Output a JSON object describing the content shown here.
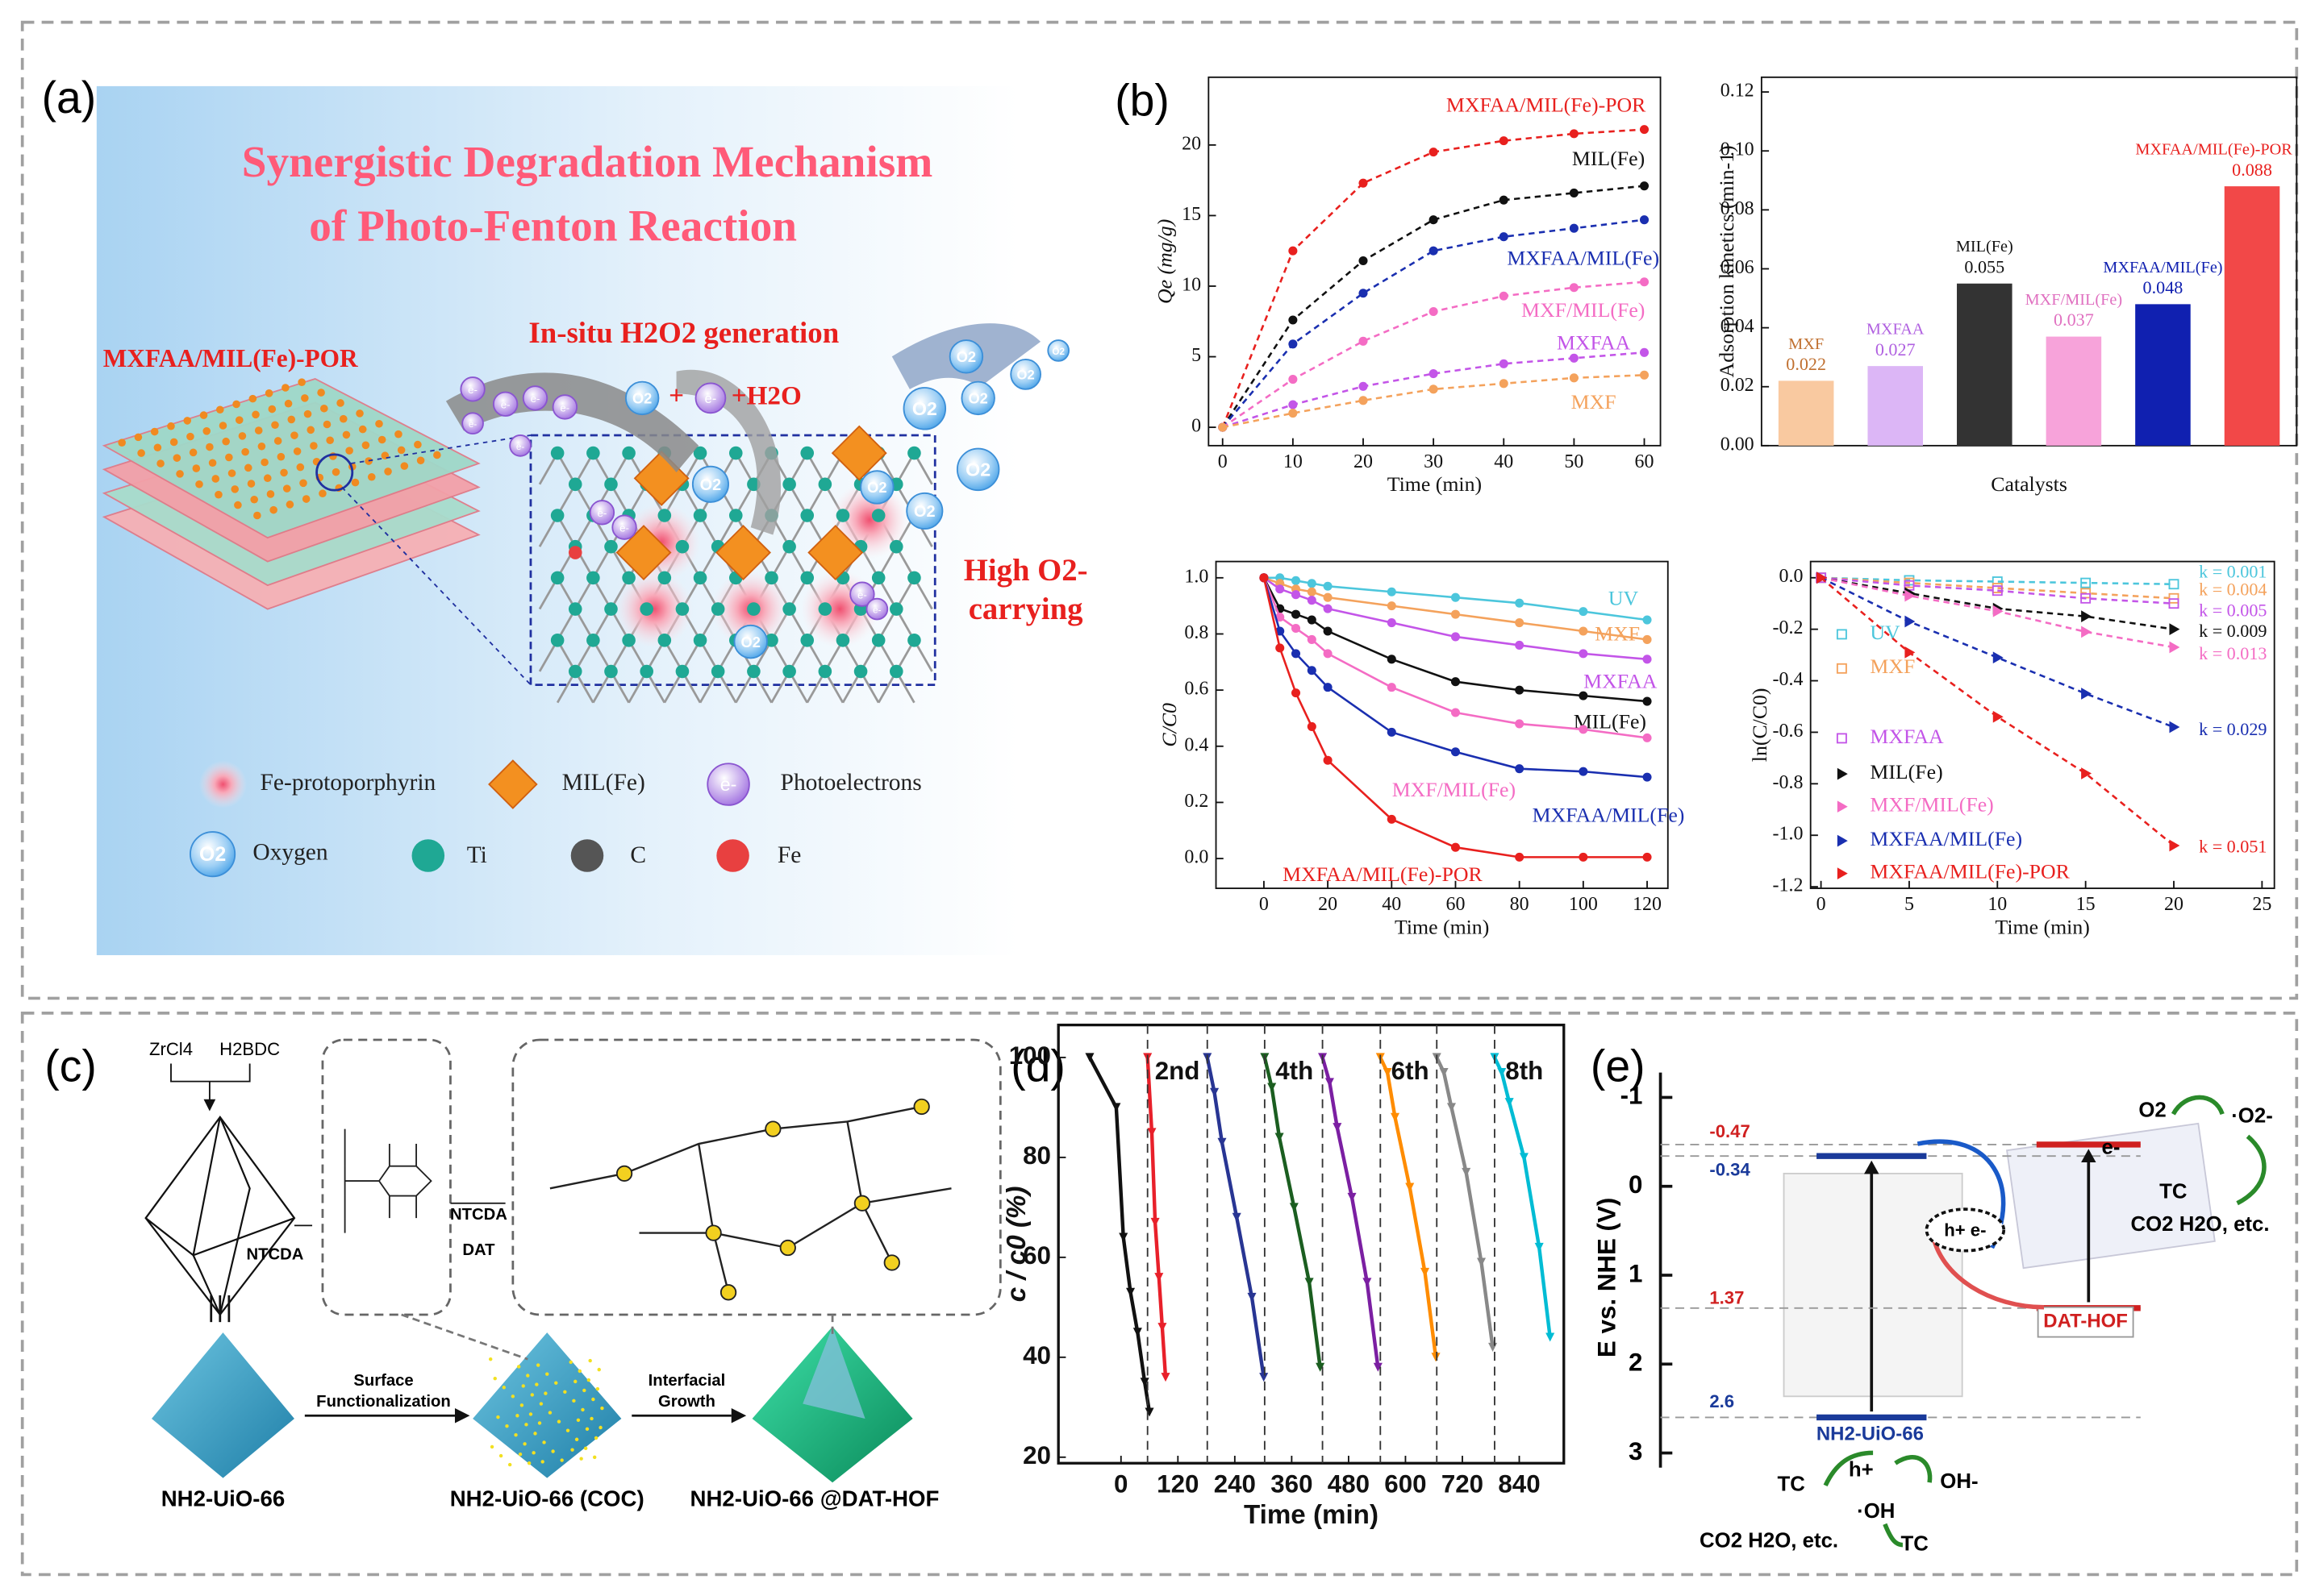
{
  "panel_a": {
    "label": "(a)",
    "title_lines": [
      "Synergistic Degradation Mechanism",
      "of Photo-Fenton Reaction"
    ],
    "material": "MXFAA/MIL(Fe)-POR",
    "generation": "In-situ H2O2 generation",
    "oxygen": "O2",
    "electron": "e-",
    "plus": "+",
    "plus_water": "+H2O",
    "carrying_lines": [
      "High O2-",
      "carrying"
    ],
    "legend": [
      "Fe-protoporphyrin",
      "MIL(Fe)",
      "Photoelectrons",
      "Oxygen",
      "Ti",
      "C",
      "Fe"
    ]
  },
  "panel_b": {
    "label": "(b)"
  },
  "chart_data": [
    {
      "type": "line",
      "line_style": "dashed",
      "x_label": "Time (min)",
      "y_label": "Qe (mg/g)",
      "x": [
        0,
        10,
        20,
        30,
        40,
        50,
        60
      ],
      "xlim": [
        -2,
        62.3
      ],
      "xticks": [
        0,
        10,
        20,
        30,
        40,
        50,
        60
      ],
      "ylim": [
        -1.3,
        24.8
      ],
      "yticks": [
        0,
        5,
        10,
        15,
        20
      ],
      "series": [
        {
          "name": "MXFAA/MIL(Fe)-POR",
          "color": "#e8201e",
          "values": [
            0,
            12.5,
            17.3,
            19.5,
            20.3,
            20.8,
            21.1
          ]
        },
        {
          "name": "MIL(Fe)",
          "color": "#111111",
          "values": [
            0,
            7.6,
            11.8,
            14.7,
            16.1,
            16.6,
            17.1
          ]
        },
        {
          "name": "MXFAA/MIL(Fe)",
          "color": "#1a2fb0",
          "values": [
            0,
            5.9,
            9.5,
            12.5,
            13.5,
            14.1,
            14.7
          ]
        },
        {
          "name": "MXF/MIL(Fe)",
          "color": "#f46cc4",
          "values": [
            0,
            3.4,
            6.1,
            8.2,
            9.3,
            9.9,
            10.3
          ]
        },
        {
          "name": "MXFAA",
          "color": "#c355e8",
          "values": [
            0,
            1.6,
            2.9,
            3.8,
            4.5,
            4.9,
            5.3
          ]
        },
        {
          "name": "MXF",
          "color": "#f4a25c",
          "values": [
            0,
            1.0,
            1.9,
            2.7,
            3.1,
            3.5,
            3.7
          ]
        }
      ]
    },
    {
      "type": "bar",
      "x_label": "Catalysts",
      "y_label": "Adsorption kinetics (min-1)",
      "categories": [
        "MXF",
        "MXFAA",
        "MIL(Fe)",
        "MXF/MIL(Fe)",
        "MXFAA/MIL(Fe)",
        "MXFAA/MIL(Fe)-POR"
      ],
      "values": [
        0.022,
        0.027,
        0.055,
        0.037,
        0.048,
        0.088
      ],
      "colors": [
        "#f9c9a0",
        "#dcb6f6",
        "#333333",
        "#f7a3da",
        "#1020b0",
        "#f24848"
      ],
      "ylim": [
        0,
        0.125
      ],
      "yticks": [
        {
          "value": 0,
          "label": "0.00"
        },
        0.02,
        0.04,
        0.06,
        0.08,
        {
          "value": 0.1,
          "label": "0.10"
        },
        0.12
      ]
    },
    {
      "type": "line",
      "line_style": "solid",
      "x_label": "Time (min)",
      "y_label": "C/C0",
      "x": [
        0,
        5,
        10,
        15,
        20,
        40,
        60,
        80,
        100,
        120
      ],
      "xlim": [
        -15,
        126.5
      ],
      "xticks": [
        0,
        20,
        40,
        60,
        80,
        100,
        120
      ],
      "ylim": [
        -0.106,
        1.058
      ],
      "yticks": [
        {
          "value": 0,
          "label": "0.0"
        },
        0.2,
        0.4,
        0.6,
        0.8,
        {
          "value": 1,
          "label": "1.0"
        }
      ],
      "series": [
        {
          "name": "UV",
          "color": "#4cc6dc",
          "values": [
            1,
            1.0,
            0.99,
            0.98,
            0.97,
            0.95,
            0.93,
            0.91,
            0.88,
            0.85
          ]
        },
        {
          "name": "MXF",
          "color": "#f4a25c",
          "values": [
            1,
            0.98,
            0.96,
            0.95,
            0.93,
            0.9,
            0.87,
            0.84,
            0.81,
            0.78
          ]
        },
        {
          "name": "MXFAA",
          "color": "#c355e8",
          "values": [
            1,
            0.96,
            0.94,
            0.92,
            0.89,
            0.84,
            0.79,
            0.76,
            0.73,
            0.71
          ]
        },
        {
          "name": "MIL(Fe)",
          "color": "#111111",
          "values": [
            1,
            0.89,
            0.87,
            0.85,
            0.81,
            0.71,
            0.63,
            0.6,
            0.58,
            0.56
          ]
        },
        {
          "name": "MXF/MIL(Fe)",
          "color": "#f46cc4",
          "values": [
            1,
            0.86,
            0.82,
            0.78,
            0.73,
            0.61,
            0.52,
            0.48,
            0.46,
            0.43
          ]
        },
        {
          "name": "MXFAA/MIL(Fe)",
          "color": "#1a2fb0",
          "values": [
            1,
            0.81,
            0.73,
            0.67,
            0.61,
            0.45,
            0.38,
            0.32,
            0.31,
            0.29
          ]
        },
        {
          "name": "MXFAA/MIL(Fe)-POR",
          "color": "#e8201e",
          "values": [
            1,
            0.75,
            0.59,
            0.47,
            0.35,
            0.14,
            0.04,
            0.005,
            0.005,
            0.005
          ]
        }
      ]
    },
    {
      "type": "line",
      "line_style": "dashed",
      "x_label": "Time (min)",
      "y_label": "ln(C/C0)",
      "x": [
        0,
        5,
        10,
        15,
        20
      ],
      "xlim": [
        -0.59,
        25.7
      ],
      "xticks": [
        0,
        5,
        10,
        15,
        20,
        25
      ],
      "ylim": [
        -1.206,
        0.063
      ],
      "yticks": [
        {
          "value": 0,
          "label": "0.0"
        },
        -0.2,
        -0.4,
        -0.6,
        -0.8,
        {
          "value": -1,
          "label": "-1.0"
        },
        -1.2
      ],
      "series": [
        {
          "name": "UV",
          "color": "#4cc6dc",
          "marker": "square-open",
          "annotation": "k = 0.001",
          "values": [
            0,
            -0.01,
            -0.015,
            -0.02,
            -0.025
          ]
        },
        {
          "name": "MXF",
          "color": "#f4a25c",
          "marker": "square-open",
          "annotation": "k = 0.004",
          "values": [
            0,
            -0.02,
            -0.04,
            -0.06,
            -0.08
          ]
        },
        {
          "name": "MXFAA",
          "color": "#c355e8",
          "marker": "square-open",
          "annotation": "k = 0.005",
          "values": [
            0,
            -0.03,
            -0.05,
            -0.08,
            -0.1
          ]
        },
        {
          "name": "MIL(Fe)",
          "color": "#111111",
          "marker": "triangle",
          "annotation": "k = 0.009",
          "values": [
            0,
            -0.06,
            -0.12,
            -0.15,
            -0.2
          ]
        },
        {
          "name": "MXF/MIL(Fe)",
          "color": "#f46cc4",
          "marker": "triangle",
          "annotation": "k = 0.013",
          "values": [
            0,
            -0.07,
            -0.13,
            -0.21,
            -0.27
          ]
        },
        {
          "name": "MXFAA/MIL(Fe)",
          "color": "#1a2fb0",
          "marker": "triangle",
          "annotation": "k = 0.029",
          "values": [
            0,
            -0.17,
            -0.31,
            -0.45,
            -0.58
          ]
        },
        {
          "name": "MXFAA/MIL(Fe)-POR",
          "color": "#e8201e",
          "marker": "triangle",
          "annotation": "k = 0.051",
          "values": [
            0,
            -0.29,
            -0.54,
            -0.76,
            -1.04
          ]
        }
      ]
    },
    {
      "type": "line",
      "line_style": "solid",
      "x_label": "Time (min)",
      "y_label": "c / c0 (%)",
      "xlim": [
        -132,
        934
      ],
      "xticks": [
        0,
        120,
        240,
        360,
        480,
        600,
        720,
        840
      ],
      "ylim": [
        18.8,
        106.5
      ],
      "yticks": [
        20,
        40,
        60,
        80,
        100
      ],
      "annotations": [
        "2nd",
        "4th",
        "6th",
        "8th"
      ],
      "series": [
        {
          "color": "#111111",
          "x": [
            -66,
            -10,
            5,
            20,
            35,
            50,
            60
          ],
          "values": [
            100,
            90,
            64,
            53,
            45,
            35,
            29
          ]
        },
        {
          "color": "#e8202a",
          "x": [
            56,
            65,
            72,
            80,
            87,
            94
          ],
          "values": [
            100,
            85,
            67,
            56,
            46,
            36
          ]
        },
        {
          "color": "#283593",
          "x": [
            182,
            197,
            213,
            244,
            276,
            301
          ],
          "values": [
            100,
            93,
            83,
            68,
            52,
            36
          ]
        },
        {
          "color": "#1b5e20",
          "x": [
            303,
            318,
            334,
            365,
            397,
            420
          ],
          "values": [
            100,
            94,
            84,
            70,
            55,
            38
          ]
        },
        {
          "color": "#7b1fa2",
          "x": [
            425,
            440,
            456,
            487,
            519,
            542
          ],
          "values": [
            100,
            95,
            86,
            72,
            55,
            38
          ]
        },
        {
          "color": "#ff8c00",
          "x": [
            547,
            562,
            578,
            609,
            641,
            664
          ],
          "values": [
            100,
            97,
            88,
            74,
            57,
            40
          ]
        },
        {
          "color": "#888888",
          "x": [
            666,
            681,
            697,
            728,
            760,
            784
          ],
          "values": [
            100,
            97,
            90,
            77,
            59,
            42
          ]
        },
        {
          "color": "#00bcd4",
          "x": [
            788,
            803,
            819,
            850,
            882,
            905
          ],
          "values": [
            100,
            97,
            91,
            80,
            62,
            44
          ]
        }
      ]
    }
  ],
  "panel_c": {
    "label": "(c)",
    "reagents": [
      "ZrCl4",
      "H2BDC"
    ],
    "step1": "NTCDA",
    "step2": [
      "NTCDA",
      "DAT"
    ],
    "arrow1": [
      "Surface",
      "Functionalization"
    ],
    "arrow2": [
      "Interfacial",
      "Growth"
    ],
    "products": [
      "NH2-UiO-66",
      "NH2-UiO-66 (COC)",
      "NH2-UiO-66 @DAT-HOF"
    ]
  },
  "panel_d": {
    "label": "(d)"
  },
  "panel_e": {
    "label": "(e)",
    "axis_label": "E vs. NHE (V)",
    "ylim": [
      -1.28,
      3.165
    ],
    "yticks": [
      -1,
      0,
      1,
      2,
      3
    ],
    "levels": [
      {
        "material": "NH2-UiO-66",
        "cb": -0.34,
        "vb": 2.6
      },
      {
        "material": "DAT-HOF",
        "cb": -0.47,
        "vb": 1.37
      }
    ],
    "pair": "h+ e-",
    "o2": "O2",
    "superoxide": "·O2-",
    "electron": "e-",
    "tc": "TC",
    "products": "CO2 H2O, etc.",
    "hole": "h+",
    "hydroxide": "OH-",
    "hydroxyl": "·OH"
  }
}
